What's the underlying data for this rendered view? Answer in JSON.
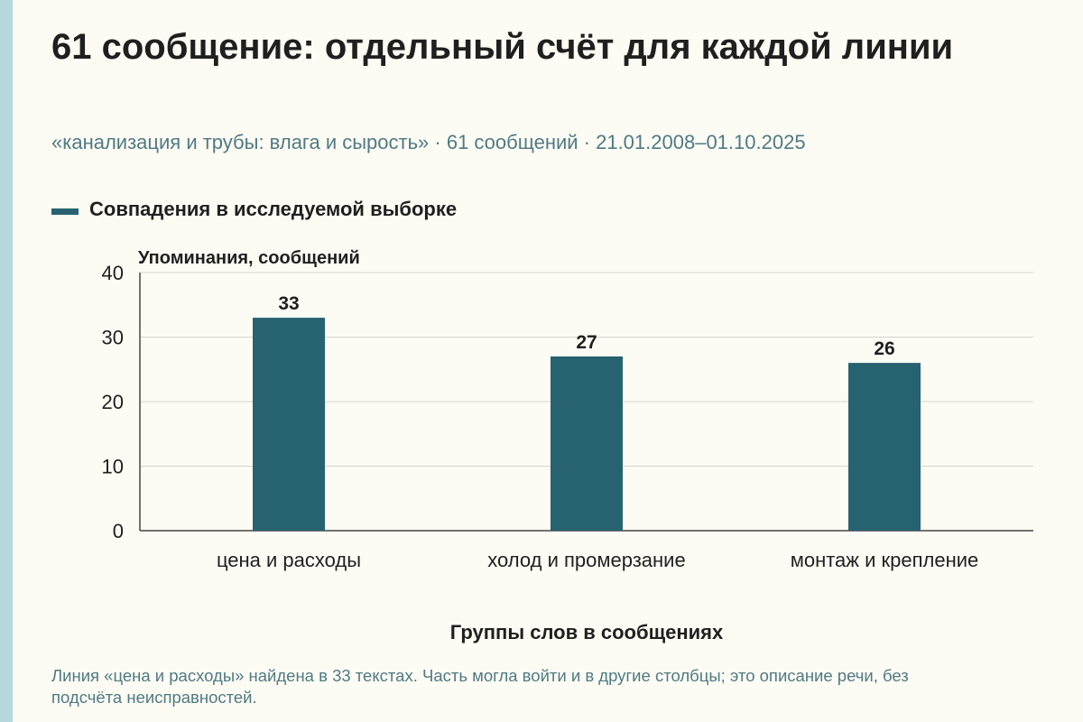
{
  "title": "61 сообщение: отдельный счёт для каждой линии",
  "subtitle": "«канализация и трубы: влага и сырость» · 61 сообщений · 21.01.2008–01.10.2025",
  "footnote": "Линия «цена и расходы» найдена в 33 текстах. Часть могла войти и в другие столбцы; это описание речи, без подсчёта неисправностей.",
  "colors": {
    "bar": "#276270",
    "accent_stripe": "#b7d9dd",
    "muted_text": "#4f7a83",
    "background": "#fdfcf4"
  },
  "chart_data": {
    "type": "bar",
    "categories": [
      "цена и расходы",
      "холод и промерзание",
      "монтаж и крепление"
    ],
    "series": [
      {
        "name": "Совпадения в исследуемой выборке",
        "values": [
          33,
          27,
          26
        ]
      }
    ],
    "data_labels": [
      "33",
      "27",
      "26"
    ],
    "xlabel": "Группы слов в сообщениях",
    "ylabel": "Упоминания, сообщений",
    "ylim": [
      0,
      40
    ],
    "yticks": [
      0,
      10,
      20,
      30,
      40
    ],
    "grid": true,
    "legend_position": "top-left"
  }
}
